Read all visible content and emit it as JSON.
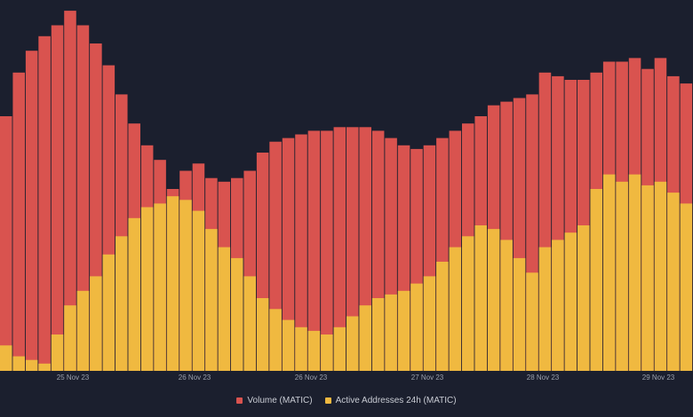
{
  "chart_data": {
    "type": "bar",
    "stacked": true,
    "xlabel": "",
    "ylabel": "",
    "grid": false,
    "legend_position": "bottom-center",
    "colors": {
      "background": "#1b1f2e",
      "volume": "#d9534f",
      "active": "#f0b940",
      "tick_text": "#9aa0ad"
    },
    "x_ticks": [
      "25 Nov 23",
      "26 Nov 23",
      "26 Nov 23",
      "27 Nov 23",
      "28 Nov 23",
      "29 Nov 23"
    ],
    "series": [
      {
        "name": "Volume (MATIC)",
        "color": "#d9534f",
        "values": [
          0.7,
          0.82,
          0.88,
          0.92,
          0.95,
          0.99,
          0.95,
          0.9,
          0.84,
          0.76,
          0.68,
          0.62,
          0.58,
          0.5,
          0.55,
          0.57,
          0.53,
          0.52,
          0.53,
          0.55,
          0.6,
          0.63,
          0.64,
          0.65,
          0.66,
          0.66,
          0.67,
          0.67,
          0.67,
          0.66,
          0.64,
          0.62,
          0.61,
          0.62,
          0.64,
          0.66,
          0.68,
          0.7,
          0.73,
          0.74,
          0.75,
          0.76,
          0.82,
          0.81,
          0.8,
          0.8,
          0.82,
          0.85,
          0.85,
          0.86,
          0.83,
          0.86,
          0.81,
          0.79
        ]
      },
      {
        "name": "Active Addresses 24h (MATIC)",
        "color": "#f0b940",
        "values": [
          0.07,
          0.04,
          0.03,
          0.02,
          0.1,
          0.18,
          0.22,
          0.26,
          0.32,
          0.37,
          0.42,
          0.45,
          0.46,
          0.48,
          0.47,
          0.44,
          0.39,
          0.34,
          0.31,
          0.26,
          0.2,
          0.17,
          0.14,
          0.12,
          0.11,
          0.1,
          0.12,
          0.15,
          0.18,
          0.2,
          0.21,
          0.22,
          0.24,
          0.26,
          0.3,
          0.34,
          0.37,
          0.4,
          0.39,
          0.36,
          0.31,
          0.27,
          0.34,
          0.36,
          0.38,
          0.4,
          0.5,
          0.54,
          0.52,
          0.54,
          0.51,
          0.52,
          0.49,
          0.46
        ]
      }
    ]
  }
}
